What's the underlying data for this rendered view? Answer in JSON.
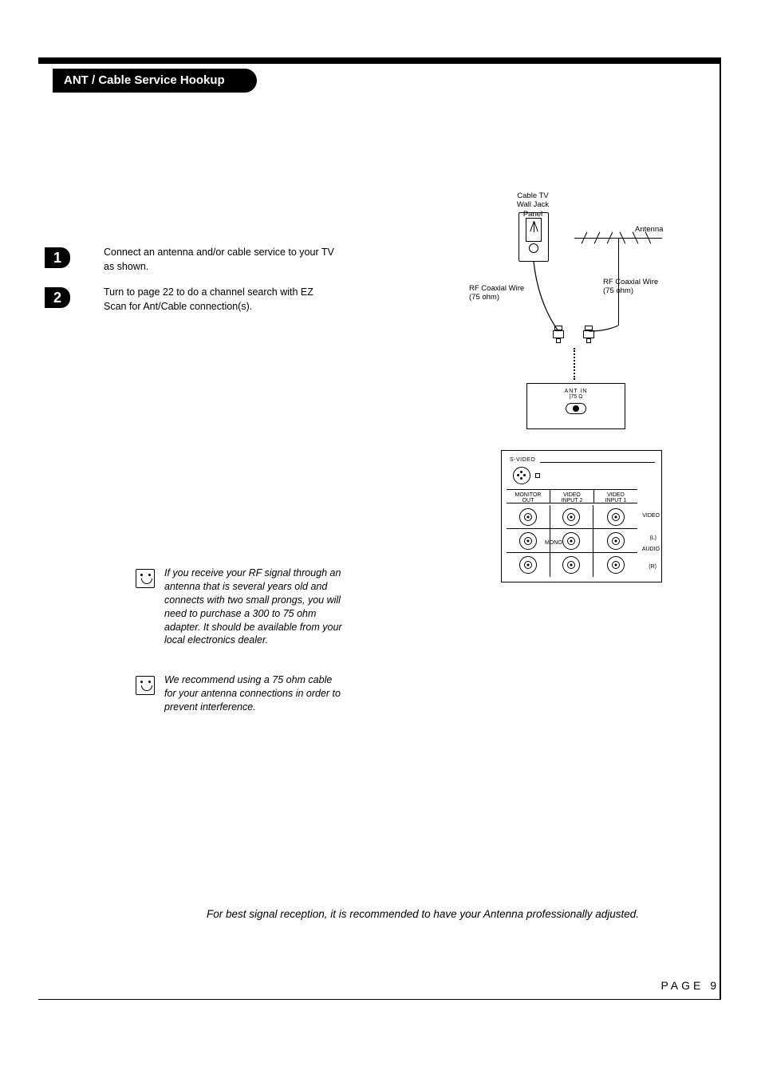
{
  "title": "ANT / Cable Service Hookup",
  "steps": [
    {
      "num": "1",
      "text": "Connect an antenna and/or cable service to your TV as shown."
    },
    {
      "num": "2",
      "text": "Turn to page 22 to do a channel search with EZ Scan for Ant/Cable connection(s)."
    }
  ],
  "notes": [
    {
      "text": "If you receive your RF signal through an antenna that is several years old and connects with two small prongs, you will need to purchase a 300 to 75 ohm adapter. It should be available from your local electronics dealer."
    },
    {
      "text": "We recommend using a 75 ohm cable for your antenna connections in order to prevent interference."
    }
  ],
  "bottom_note": "For best signal reception, it is recommended to have your Antenna professionally adjusted.",
  "page_label": "PAGE 9",
  "diagram": {
    "cable_tv_label": "Cable TV\nWall Jack Panel",
    "antenna_label": "Antenna",
    "rf_left": "RF Coaxial Wire\n(75 ohm)",
    "rf_right": "RF Coaxial Wire\n(75 ohm)",
    "ant_in": "ANT IN",
    "ant_in_sub": "|75 Ω",
    "svideo": "S-VIDEO",
    "col_monitor": "MONITOR\nOUT",
    "col_vin2": "VIDEO\nINPUT 2",
    "col_vin1": "VIDEO\nINPUT 1",
    "row_video": "VIDEO",
    "row_mono": "MONO",
    "row_l": "(L)",
    "row_audio": "AUDIO",
    "row_r": "(R)"
  }
}
